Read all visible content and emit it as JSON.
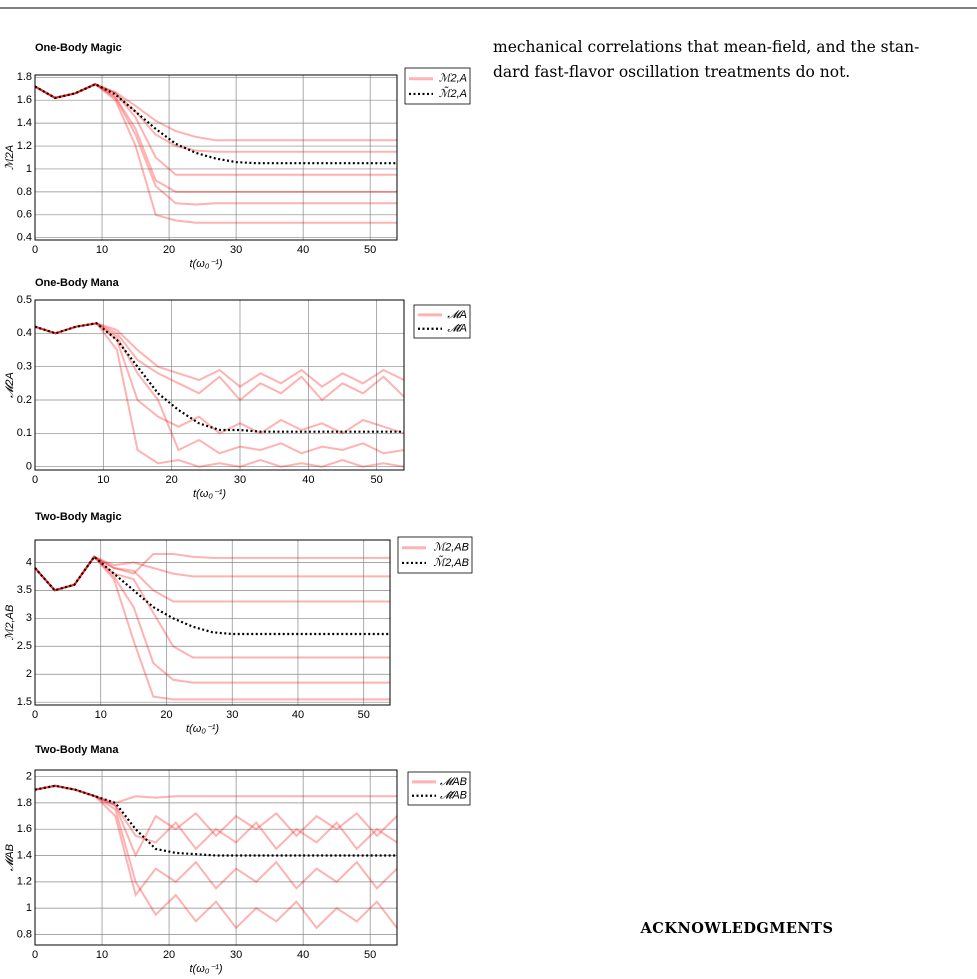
{
  "chart_data": [
    {
      "type": "line",
      "title": "One-Body Magic",
      "x_label": "t(ω₀⁻¹)",
      "y_label": "ℳ2A",
      "x": [
        0,
        3,
        6,
        9,
        12,
        15,
        18,
        21,
        24,
        27,
        30,
        33,
        36,
        39,
        42,
        45,
        48,
        51,
        54
      ],
      "xlim": [
        0,
        54
      ],
      "xticks": [
        0,
        10,
        20,
        30,
        40,
        50
      ],
      "ylim": [
        0.38,
        1.82
      ],
      "yticks": [
        0.4,
        0.6,
        0.8,
        1,
        1.2,
        1.4,
        1.6,
        1.8
      ],
      "grid": true,
      "ensemble": {
        "name": "ℳ2,A",
        "color": "#ff0000",
        "runs": [
          [
            1.72,
            1.62,
            1.66,
            1.74,
            1.6,
            1.2,
            0.6,
            0.55,
            0.53,
            0.53,
            0.53,
            0.53,
            0.53,
            0.53,
            0.53,
            0.53,
            0.53,
            0.53,
            0.53
          ],
          [
            1.72,
            1.62,
            1.66,
            1.74,
            1.62,
            1.3,
            0.85,
            0.7,
            0.69,
            0.7,
            0.7,
            0.7,
            0.7,
            0.7,
            0.7,
            0.7,
            0.7,
            0.7,
            0.7
          ],
          [
            1.72,
            1.62,
            1.66,
            1.74,
            1.66,
            1.45,
            1.1,
            0.95,
            0.95,
            0.95,
            0.95,
            0.95,
            0.95,
            0.95,
            0.95,
            0.95,
            0.95,
            0.95,
            0.95
          ],
          [
            1.72,
            1.62,
            1.66,
            1.74,
            1.67,
            1.55,
            1.42,
            1.33,
            1.28,
            1.25,
            1.25,
            1.25,
            1.25,
            1.25,
            1.25,
            1.25,
            1.25,
            1.25,
            1.25
          ],
          [
            1.72,
            1.62,
            1.66,
            1.74,
            1.66,
            1.5,
            1.3,
            1.2,
            1.16,
            1.15,
            1.15,
            1.15,
            1.15,
            1.15,
            1.15,
            1.15,
            1.15,
            1.15,
            1.15
          ],
          [
            1.72,
            1.62,
            1.66,
            1.74,
            1.63,
            1.35,
            0.9,
            0.8,
            0.8,
            0.8,
            0.8,
            0.8,
            0.8,
            0.8,
            0.8,
            0.8,
            0.8,
            0.8,
            0.8
          ]
        ]
      },
      "mean": {
        "name": "ℳ̃2,A",
        "color": "#000000",
        "values": [
          1.72,
          1.62,
          1.66,
          1.74,
          1.65,
          1.5,
          1.35,
          1.22,
          1.14,
          1.09,
          1.06,
          1.05,
          1.05,
          1.05,
          1.05,
          1.05,
          1.05,
          1.05,
          1.05
        ]
      }
    },
    {
      "type": "line",
      "title": "One-Body Mana",
      "x_label": "t(ω₀⁻¹)",
      "y_label": "𝓜2A",
      "x": [
        0,
        3,
        6,
        9,
        12,
        15,
        18,
        21,
        24,
        27,
        30,
        33,
        36,
        39,
        42,
        45,
        48,
        51,
        54
      ],
      "xlim": [
        0,
        54
      ],
      "xticks": [
        0,
        10,
        20,
        30,
        40,
        50
      ],
      "ylim": [
        -0.01,
        0.5
      ],
      "yticks": [
        0,
        0.1,
        0.2,
        0.3,
        0.4,
        0.5
      ],
      "grid": true,
      "ensemble": {
        "name": "𝓜A",
        "color": "#ff0000",
        "runs": [
          [
            0.42,
            0.4,
            0.42,
            0.43,
            0.35,
            0.05,
            0.01,
            0.02,
            0,
            0.01,
            0,
            0.02,
            0,
            0.01,
            0,
            0.02,
            0,
            0.01,
            0
          ],
          [
            0.42,
            0.4,
            0.42,
            0.43,
            0.4,
            0.32,
            0.28,
            0.25,
            0.22,
            0.27,
            0.2,
            0.25,
            0.22,
            0.27,
            0.2,
            0.25,
            0.22,
            0.27,
            0.21
          ],
          [
            0.42,
            0.4,
            0.42,
            0.43,
            0.38,
            0.2,
            0.15,
            0.12,
            0.15,
            0.1,
            0.13,
            0.1,
            0.14,
            0.11,
            0.13,
            0.1,
            0.14,
            0.12,
            0.1
          ],
          [
            0.42,
            0.4,
            0.42,
            0.43,
            0.39,
            0.28,
            0.2,
            0.05,
            0.08,
            0.04,
            0.06,
            0.05,
            0.07,
            0.04,
            0.06,
            0.05,
            0.07,
            0.04,
            0.05
          ],
          [
            0.42,
            0.4,
            0.42,
            0.43,
            0.41,
            0.35,
            0.3,
            0.28,
            0.26,
            0.29,
            0.24,
            0.28,
            0.25,
            0.29,
            0.24,
            0.28,
            0.25,
            0.29,
            0.26
          ]
        ]
      },
      "mean": {
        "name": "𝓜̃A",
        "color": "#000000",
        "values": [
          0.42,
          0.4,
          0.42,
          0.43,
          0.38,
          0.3,
          0.22,
          0.17,
          0.13,
          0.11,
          0.11,
          0.105,
          0.105,
          0.105,
          0.105,
          0.105,
          0.105,
          0.105,
          0.105
        ]
      }
    },
    {
      "type": "line",
      "title": "Two-Body Magic",
      "x_label": "t(ω₀⁻¹)",
      "y_label": "ℳ2,AB",
      "x": [
        0,
        3,
        6,
        9,
        12,
        15,
        18,
        21,
        24,
        27,
        30,
        33,
        36,
        39,
        42,
        45,
        48,
        51,
        54
      ],
      "xlim": [
        0,
        54
      ],
      "xticks": [
        0,
        10,
        20,
        30,
        40,
        50
      ],
      "ylim": [
        1.45,
        4.4
      ],
      "yticks": [
        1.5,
        2,
        2.5,
        3,
        3.5,
        4
      ],
      "grid": true,
      "ensemble": {
        "name": "ℳ2,AB",
        "color": "#ff0000",
        "runs": [
          [
            3.9,
            3.5,
            3.6,
            4.1,
            3.7,
            2.6,
            1.6,
            1.55,
            1.55,
            1.55,
            1.55,
            1.55,
            1.55,
            1.55,
            1.55,
            1.55,
            1.55,
            1.55,
            1.55
          ],
          [
            3.9,
            3.5,
            3.6,
            4.1,
            3.9,
            3.8,
            4.15,
            4.15,
            4.1,
            4.08,
            4.08,
            4.08,
            4.08,
            4.08,
            4.08,
            4.08,
            4.08,
            4.08,
            4.08
          ],
          [
            3.9,
            3.5,
            3.6,
            4.1,
            3.8,
            3.7,
            3.1,
            2.5,
            2.3,
            2.3,
            2.3,
            2.3,
            2.3,
            2.3,
            2.3,
            2.3,
            2.3,
            2.3,
            2.3
          ],
          [
            3.9,
            3.5,
            3.6,
            4.1,
            3.9,
            3.85,
            3.5,
            3.3,
            3.3,
            3.3,
            3.3,
            3.3,
            3.3,
            3.3,
            3.3,
            3.3,
            3.3,
            3.3,
            3.3
          ],
          [
            3.9,
            3.5,
            3.6,
            4.1,
            3.75,
            3.2,
            2.2,
            1.9,
            1.85,
            1.85,
            1.85,
            1.85,
            1.85,
            1.85,
            1.85,
            1.85,
            1.85,
            1.85,
            1.85
          ],
          [
            3.9,
            3.5,
            3.6,
            4.1,
            3.95,
            4.0,
            3.9,
            3.8,
            3.75,
            3.75,
            3.75,
            3.75,
            3.75,
            3.75,
            3.75,
            3.75,
            3.75,
            3.75,
            3.75
          ]
        ]
      },
      "mean": {
        "name": "ℳ̃2,AB",
        "color": "#000000",
        "values": [
          3.9,
          3.5,
          3.6,
          4.1,
          3.8,
          3.5,
          3.2,
          3.0,
          2.85,
          2.75,
          2.72,
          2.72,
          2.72,
          2.72,
          2.72,
          2.72,
          2.72,
          2.72,
          2.72
        ]
      }
    },
    {
      "type": "line",
      "title": "Two-Body Mana",
      "x_label": "t(ω₀⁻¹)",
      "y_label": "𝓜AB",
      "x": [
        0,
        3,
        6,
        9,
        12,
        15,
        18,
        21,
        24,
        27,
        30,
        33,
        36,
        39,
        42,
        45,
        48,
        51,
        54
      ],
      "xlim": [
        0,
        54
      ],
      "xticks": [
        0,
        10,
        20,
        30,
        40,
        50
      ],
      "ylim": [
        0.72,
        2.05
      ],
      "yticks": [
        0.8,
        1,
        1.2,
        1.4,
        1.6,
        1.8,
        2
      ],
      "grid": true,
      "ensemble": {
        "name": "𝓜AB",
        "color": "#ff0000",
        "runs": [
          [
            1.9,
            1.93,
            1.9,
            1.85,
            1.8,
            1.85,
            1.84,
            1.85,
            1.85,
            1.85,
            1.85,
            1.85,
            1.85,
            1.85,
            1.85,
            1.85,
            1.85,
            1.85,
            1.85
          ],
          [
            1.9,
            1.93,
            1.9,
            1.85,
            1.75,
            1.2,
            0.95,
            1.1,
            0.9,
            1.05,
            0.85,
            1.0,
            0.9,
            1.05,
            0.85,
            1.0,
            0.9,
            1.05,
            0.85
          ],
          [
            1.9,
            1.93,
            1.9,
            1.85,
            1.78,
            1.55,
            1.5,
            1.65,
            1.45,
            1.6,
            1.5,
            1.65,
            1.45,
            1.6,
            1.5,
            1.65,
            1.45,
            1.6,
            1.5
          ],
          [
            1.9,
            1.93,
            1.9,
            1.85,
            1.7,
            1.1,
            1.3,
            1.2,
            1.35,
            1.15,
            1.3,
            1.2,
            1.35,
            1.15,
            1.3,
            1.2,
            1.35,
            1.15,
            1.3
          ],
          [
            1.9,
            1.93,
            1.9,
            1.85,
            1.78,
            1.4,
            1.7,
            1.6,
            1.72,
            1.55,
            1.7,
            1.6,
            1.72,
            1.55,
            1.7,
            1.6,
            1.72,
            1.55,
            1.7
          ]
        ]
      },
      "mean": {
        "name": "𝓜̃AB",
        "color": "#000000",
        "values": [
          1.9,
          1.93,
          1.9,
          1.85,
          1.8,
          1.6,
          1.45,
          1.42,
          1.41,
          1.4,
          1.4,
          1.4,
          1.4,
          1.4,
          1.4,
          1.4,
          1.4,
          1.4,
          1.4
        ]
      }
    }
  ],
  "text": {
    "paragraph_lines": [
      "mechanical correlations that mean-field, and the stan-",
      "dard fast-flavor oscillation treatments do not."
    ],
    "heading": "ACKNOWLEDGMENTS"
  }
}
